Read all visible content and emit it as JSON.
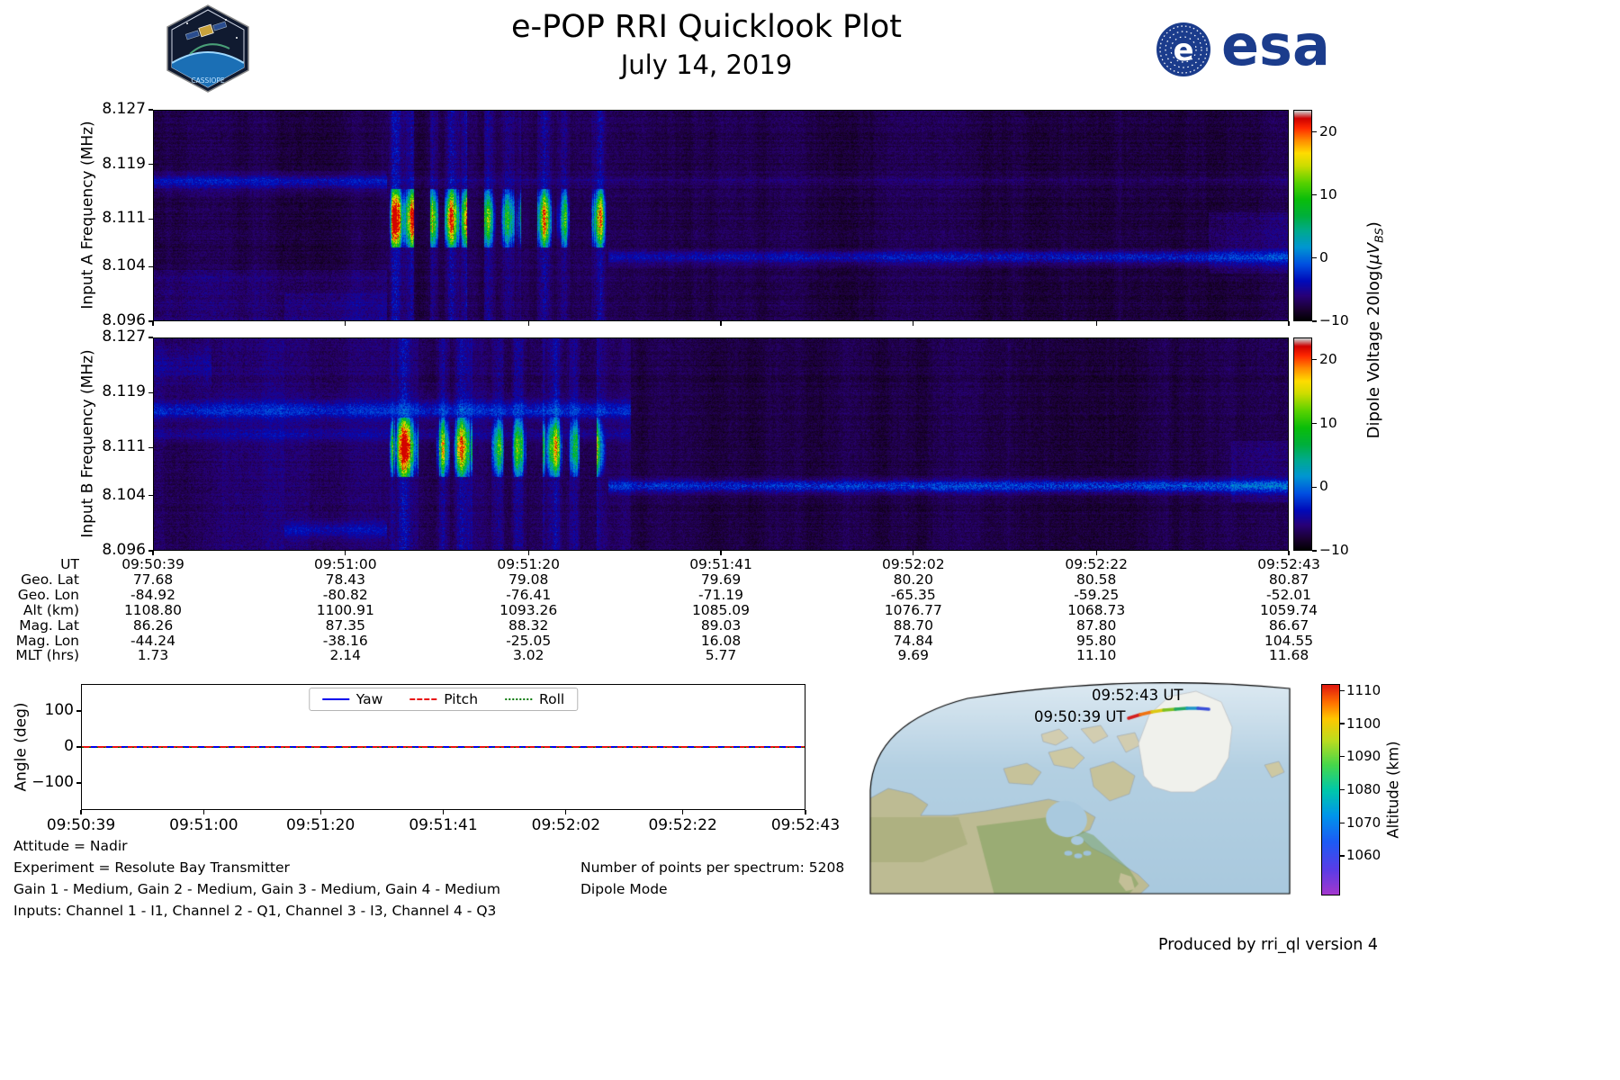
{
  "header": {
    "title": "e-POP RRI Quicklook Plot",
    "date": "July 14, 2019",
    "esa_text": "esa",
    "mission_text": "CASSIOPE"
  },
  "colors": {
    "esa_blue": "#1b3c8c",
    "yaw_blue": "#0000ee",
    "pitch_red": "#e81010",
    "roll_green": "#007700"
  },
  "spectrograms": {
    "yticks": [
      "8.127",
      "8.119",
      "8.111",
      "8.104",
      "8.096"
    ],
    "panel_a": {
      "ylabel": "Input A Frequency (MHz)"
    },
    "panel_b": {
      "ylabel": "Input B Frequency (MHz)"
    },
    "colorbar": {
      "ticks": [
        "20",
        "10",
        "0",
        "−10"
      ],
      "label_prefix": "Dipole Voltage 20log(",
      "label_unit": "μV",
      "label_sub": "BS",
      "label_suffix": ")"
    },
    "time_start": "09:50:39",
    "time_end": "09:52:43"
  },
  "ephemeris": {
    "rows": [
      {
        "label": "UT",
        "values": [
          "09:50:39",
          "09:51:00",
          "09:51:20",
          "09:51:41",
          "09:52:02",
          "09:52:22",
          "09:52:43"
        ]
      },
      {
        "label": "Geo. Lat",
        "values": [
          "77.68",
          "78.43",
          "79.08",
          "79.69",
          "80.20",
          "80.58",
          "80.87"
        ]
      },
      {
        "label": "Geo. Lon",
        "values": [
          "-84.92",
          "-80.82",
          "-76.41",
          "-71.19",
          "-65.35",
          "-59.25",
          "-52.01"
        ]
      },
      {
        "label": "Alt (km)",
        "values": [
          "1108.80",
          "1100.91",
          "1093.26",
          "1085.09",
          "1076.77",
          "1068.73",
          "1059.74"
        ]
      },
      {
        "label": "Mag. Lat",
        "values": [
          "86.26",
          "87.35",
          "88.32",
          "89.03",
          "88.70",
          "87.80",
          "86.67"
        ]
      },
      {
        "label": "Mag. Lon",
        "values": [
          "-44.24",
          "-38.16",
          "-25.05",
          "16.08",
          "74.84",
          "95.80",
          "104.55"
        ]
      },
      {
        "label": "MLT (hrs)",
        "values": [
          "1.73",
          "2.14",
          "3.02",
          "5.77",
          "9.69",
          "11.10",
          "11.68"
        ]
      }
    ]
  },
  "angle_plot": {
    "ylabel": "Angle (deg)",
    "yticks": [
      "100",
      "0",
      "−100"
    ],
    "xticks": [
      "09:50:39",
      "09:51:00",
      "09:51:20",
      "09:51:41",
      "09:52:02",
      "09:52:22",
      "09:52:43"
    ],
    "legend": [
      {
        "label": "Yaw",
        "style": "solid",
        "color": "#0000ee"
      },
      {
        "label": "Pitch",
        "style": "dashed",
        "color": "#e81010"
      },
      {
        "label": "Roll",
        "style": "dotted",
        "color": "#007700"
      }
    ]
  },
  "annotations": {
    "attitude": "Attitude = Nadir",
    "experiment": "Experiment = Resolute Bay Transmitter",
    "gains": "Gain 1 - Medium, Gain 2 - Medium, Gain 3 - Medium, Gain 4 - Medium",
    "inputs": "Inputs: Channel 1 - I1, Channel 2 - Q1, Channel 3 - I3, Channel 4 - Q3",
    "points_per_spectrum": "Number of points per spectrum: 5208",
    "mode": "Dipole Mode"
  },
  "map": {
    "start_label": "09:50:39 UT",
    "end_label": "09:52:43 UT",
    "colorbar_label": "Altitude (km)",
    "colorbar_ticks": [
      "1110",
      "1100",
      "1090",
      "1080",
      "1070",
      "1060"
    ]
  },
  "footer": "Produced by rri_ql version 4",
  "chart_data": [
    {
      "type": "heatmap",
      "title": "Input A spectrogram",
      "xlabel": "UT",
      "ylabel": "Input A Frequency (MHz)",
      "x_range": [
        "09:50:39",
        "09:52:43"
      ],
      "ylim": [
        8.096,
        8.127
      ],
      "yticks": [
        8.096,
        8.104,
        8.111,
        8.119,
        8.127
      ],
      "colorbar_label": "Dipole Voltage 20log(uV_BS)",
      "colorbar_range": [
        -10,
        23
      ],
      "features": [
        {
          "name": "transmitter-emission-burst",
          "time_start": "09:51:05",
          "time_end": "09:51:30",
          "freq_low_MHz": 8.107,
          "freq_high_MHz": 8.115,
          "peak_dB": 23,
          "structure": "vertical stripes, green-yellow with red cores"
        },
        {
          "name": "continuous-carrier-line",
          "time_start": "09:51:30",
          "time_end": "09:52:43",
          "freq_MHz": 8.105,
          "level_dB": -4
        },
        {
          "name": "background-noise",
          "level_dB": -9
        }
      ]
    },
    {
      "type": "heatmap",
      "title": "Input B spectrogram",
      "xlabel": "UT",
      "ylabel": "Input B Frequency (MHz)",
      "x_range": [
        "09:50:39",
        "09:52:43"
      ],
      "ylim": [
        8.096,
        8.127
      ],
      "yticks": [
        8.096,
        8.104,
        8.111,
        8.119,
        8.127
      ],
      "colorbar_label": "Dipole Voltage 20log(uV_BS)",
      "colorbar_range": [
        -10,
        23
      ],
      "features": [
        {
          "name": "transmitter-emission-burst",
          "time_start": "09:51:05",
          "time_end": "09:51:30",
          "freq_low_MHz": 8.107,
          "freq_high_MHz": 8.115,
          "peak_dB": 23,
          "structure": "vertical stripes, green-yellow with red cores"
        },
        {
          "name": "continuous-carrier-line",
          "time_start": "09:51:30",
          "time_end": "09:52:43",
          "freq_MHz": 8.105,
          "level_dB": -2
        },
        {
          "name": "band-noise-left-half",
          "time_start": "09:50:39",
          "time_end": "09:51:30",
          "freq_MHz": 8.116,
          "level_dB": -5
        },
        {
          "name": "background-noise",
          "level_dB": -9
        }
      ]
    },
    {
      "type": "line",
      "title": "Spacecraft attitude angles",
      "ylabel": "Angle (deg)",
      "ylim": [
        -175,
        175
      ],
      "x": [
        "09:50:39",
        "09:51:00",
        "09:51:20",
        "09:51:41",
        "09:52:02",
        "09:52:22",
        "09:52:43"
      ],
      "series": [
        {
          "name": "Yaw",
          "values": [
            0,
            0,
            0,
            0,
            0,
            0,
            0
          ]
        },
        {
          "name": "Pitch",
          "values": [
            0,
            0,
            0,
            0,
            0,
            0,
            0
          ]
        },
        {
          "name": "Roll",
          "values": [
            0,
            0,
            0,
            0,
            0,
            0,
            0
          ]
        }
      ],
      "legend_position": "top-center"
    },
    {
      "type": "table",
      "title": "Ephemeris",
      "columns": [
        "09:50:39",
        "09:51:00",
        "09:51:20",
        "09:51:41",
        "09:52:02",
        "09:52:22",
        "09:52:43"
      ],
      "rows": [
        {
          "label": "Geo. Lat",
          "values": [
            77.68,
            78.43,
            79.08,
            79.69,
            80.2,
            80.58,
            80.87
          ]
        },
        {
          "label": "Geo. Lon",
          "values": [
            -84.92,
            -80.82,
            -76.41,
            -71.19,
            -65.35,
            -59.25,
            -52.01
          ]
        },
        {
          "label": "Alt (km)",
          "values": [
            1108.8,
            1100.91,
            1093.26,
            1085.09,
            1076.77,
            1068.73,
            1059.74
          ]
        },
        {
          "label": "Mag. Lat",
          "values": [
            86.26,
            87.35,
            88.32,
            89.03,
            88.7,
            87.8,
            86.67
          ]
        },
        {
          "label": "Mag. Lon",
          "values": [
            -44.24,
            -38.16,
            -25.05,
            16.08,
            74.84,
            95.8,
            104.55
          ]
        },
        {
          "label": "MLT (hrs)",
          "values": [
            1.73,
            2.14,
            3.02,
            5.77,
            9.69,
            11.1,
            11.68
          ]
        }
      ]
    },
    {
      "type": "map-track",
      "title": "Ground track over North America / Greenland",
      "start": {
        "ut": "09:50:39",
        "lat": 77.68,
        "lon": -84.92,
        "alt_km": 1108.8
      },
      "end": {
        "ut": "09:52:43",
        "lat": 80.87,
        "lon": -52.01,
        "alt_km": 1059.74
      },
      "colorbar_label": "Altitude (km)",
      "colorbar_ticks": [
        1060,
        1070,
        1080,
        1090,
        1100,
        1110
      ]
    }
  ]
}
